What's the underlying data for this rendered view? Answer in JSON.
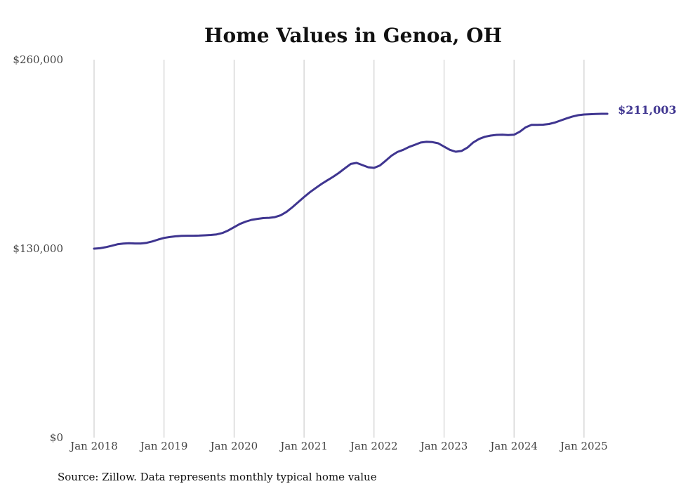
{
  "colors": {
    "line": "#3f3590",
    "grid": "#c4c4c4",
    "text": "#444444"
  },
  "source": "Source: Zillow. Data represents monthly typical home value",
  "chart_data": {
    "type": "line",
    "title": "Home Values in Genoa, OH",
    "xlabel": "",
    "ylabel": "",
    "x_tick_labels": [
      "Jan 2018",
      "Jan 2019",
      "Jan 2020",
      "Jan 2021",
      "Jan 2022",
      "Jan 2023",
      "Jan 2024",
      "Jan 2025"
    ],
    "y_tick_labels": [
      "$0",
      "$130,000",
      "$260,000"
    ],
    "ylim": [
      0,
      260000
    ],
    "grid": "vertical",
    "end_label": "$211,003",
    "series": [
      {
        "x": [
          "2018-01",
          "2018-02",
          "2018-03",
          "2018-04",
          "2018-05",
          "2018-06",
          "2018-07",
          "2018-08",
          "2018-09",
          "2018-10",
          "2018-11",
          "2018-12",
          "2019-01",
          "2019-02",
          "2019-03",
          "2019-04",
          "2019-05",
          "2019-06",
          "2019-07",
          "2019-08",
          "2019-09",
          "2019-10",
          "2019-11",
          "2019-12",
          "2020-01",
          "2020-02",
          "2020-03",
          "2020-04",
          "2020-05",
          "2020-06",
          "2020-07",
          "2020-08",
          "2020-09",
          "2020-10",
          "2020-11",
          "2020-12",
          "2021-01",
          "2021-02",
          "2021-03",
          "2021-04",
          "2021-05",
          "2021-06",
          "2021-07",
          "2021-08",
          "2021-09",
          "2021-10",
          "2021-11",
          "2021-12",
          "2022-01",
          "2022-02",
          "2022-03",
          "2022-04",
          "2022-05",
          "2022-06",
          "2022-07",
          "2022-08",
          "2022-09",
          "2022-10",
          "2022-11",
          "2022-12",
          "2023-01",
          "2023-02",
          "2023-03",
          "2023-04",
          "2023-05",
          "2023-06",
          "2023-07",
          "2023-08",
          "2023-09",
          "2023-10",
          "2023-11",
          "2023-12",
          "2024-01",
          "2024-02",
          "2024-03",
          "2024-04",
          "2024-05",
          "2024-06",
          "2024-07",
          "2024-08",
          "2024-09",
          "2024-10",
          "2024-11",
          "2024-12",
          "2025-01",
          "2025-02",
          "2025-03",
          "2025-04",
          "2025-05"
        ],
        "values": [
          130000,
          130300,
          131000,
          132000,
          133000,
          133500,
          133700,
          133600,
          133600,
          134000,
          135000,
          136300,
          137400,
          138000,
          138500,
          138800,
          138900,
          138900,
          139000,
          139200,
          139400,
          139800,
          140800,
          142500,
          144800,
          147000,
          148600,
          149800,
          150500,
          151000,
          151200,
          151700,
          153000,
          155300,
          158500,
          162000,
          165500,
          168800,
          171700,
          174500,
          177000,
          179500,
          182200,
          185300,
          188300,
          189000,
          187500,
          186000,
          185600,
          187200,
          190500,
          194000,
          196500,
          198000,
          200000,
          201500,
          203000,
          203500,
          203300,
          202500,
          200200,
          198000,
          196700,
          197200,
          199500,
          203000,
          205500,
          207000,
          207800,
          208300,
          208400,
          208200,
          208400,
          210500,
          213500,
          215200,
          215200,
          215300,
          215800,
          216800,
          218200,
          219600,
          220900,
          221800,
          222300,
          222500,
          222700,
          222800,
          211003
        ]
      }
    ]
  }
}
